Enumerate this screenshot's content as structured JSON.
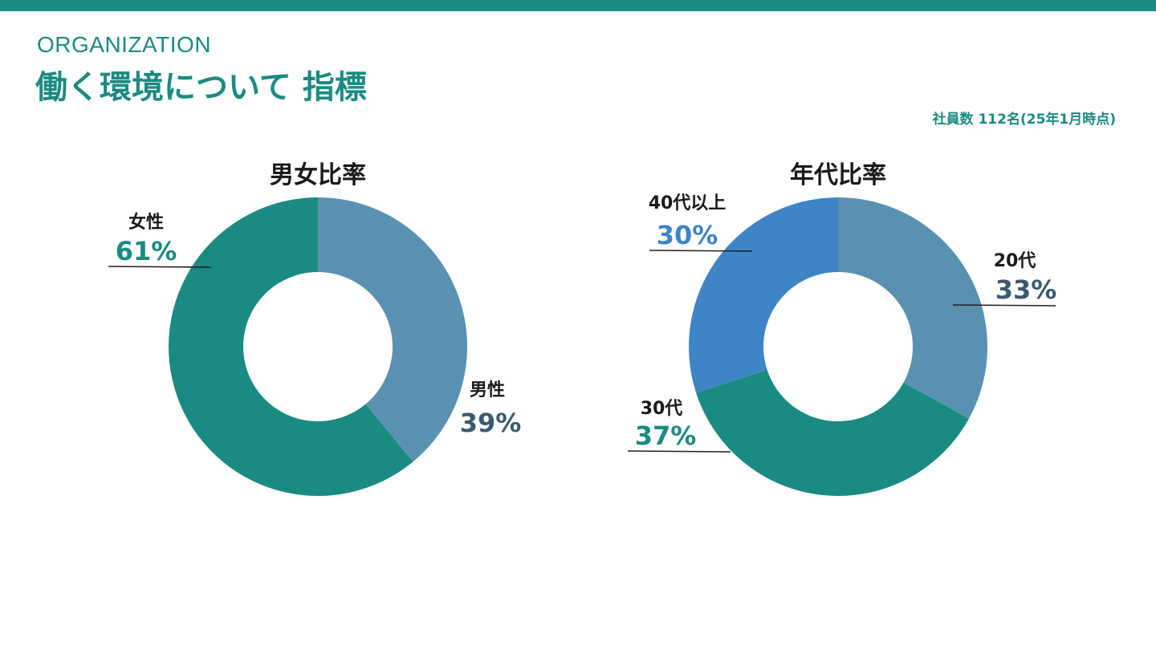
{
  "header": {
    "eyebrow": "ORGANIZATION",
    "title": "働く環境について 指標",
    "headcount": "社員数 112名(25年1月時点)"
  },
  "colors": {
    "accent": "#1a8b82",
    "steel_blue": "#5a91b0",
    "blue": "#3f84c6",
    "dark_slate": "#3a5a6e"
  },
  "chart_data": [
    {
      "type": "pie",
      "title": "男女比率",
      "slices": [
        {
          "label": "男性",
          "value_text": "39%",
          "value": 39,
          "color": "#5a91b0",
          "text_color": "#3a5a6e"
        },
        {
          "label": "女性",
          "value_text": "61%",
          "value": 61,
          "color": "#1a8b82",
          "text_color": "#1a8b82"
        }
      ]
    },
    {
      "type": "pie",
      "title": "年代比率",
      "slices": [
        {
          "label": "20代",
          "value_text": "33%",
          "value": 33,
          "color": "#5a91b0",
          "text_color": "#3a5a6e"
        },
        {
          "label": "30代",
          "value_text": "37%",
          "value": 37,
          "color": "#1a8b82",
          "text_color": "#1a8b82"
        },
        {
          "label": "40代以上",
          "value_text": "30%",
          "value": 30,
          "color": "#3f84c6",
          "text_color": "#3f84c6"
        }
      ]
    }
  ]
}
